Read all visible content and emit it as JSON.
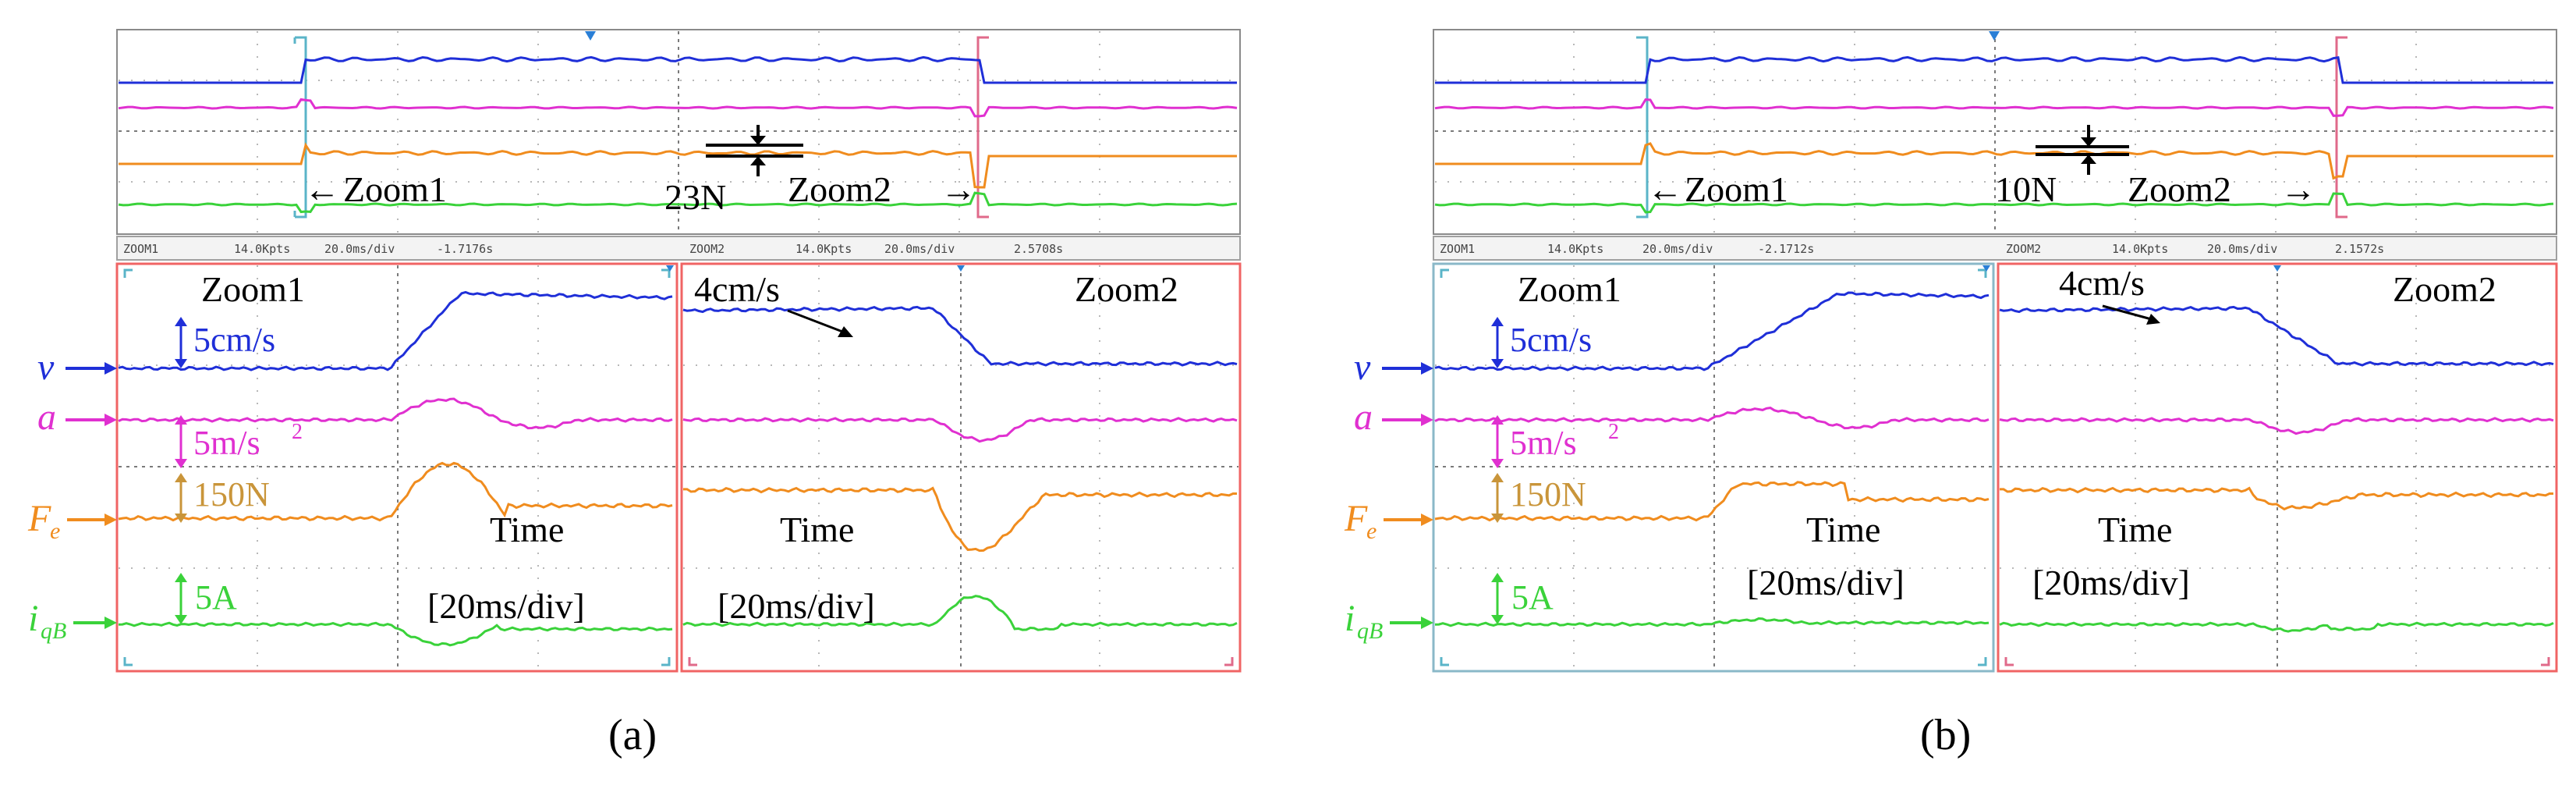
{
  "chart_data": [
    {
      "type": "line",
      "panel": "(a)",
      "channel_labels": [
        "v",
        "a",
        "F",
        "e",
        "i",
        "qB"
      ],
      "scales": {
        "v": "5cm/s",
        "a": "5m/s",
        "a_exp": "2",
        "F": "150N",
        "i": "5A"
      },
      "overview": {
        "zoom1_text": "Zoom1",
        "zoom2_text": "Zoom2",
        "ripple_text": "23N",
        "arrow_left": "←",
        "arrow_right": "→"
      },
      "zoom_headers": [
        {
          "name": "ZOOM1",
          "pts": "14.0Kpts",
          "div": "20.0ms/div",
          "t": "-1.7176s"
        },
        {
          "name": "ZOOM2",
          "pts": "14.0Kpts",
          "div": "20.0ms/div",
          "t": "2.5708s"
        }
      ],
      "zoom1": {
        "title": "Zoom1",
        "time_line1": "Time",
        "time_line2": "[20ms/div]"
      },
      "zoom2": {
        "title": "Zoom2",
        "speed_text": "4cm/s",
        "time_line1": "Time",
        "time_line2": "[20ms/div]"
      }
    },
    {
      "type": "line",
      "panel": "(b)",
      "channel_labels": [
        "v",
        "a",
        "F",
        "e",
        "i",
        "qB"
      ],
      "scales": {
        "v": "5cm/s",
        "a": "5m/s",
        "a_exp": "2",
        "F": "150N",
        "i": "5A"
      },
      "overview": {
        "zoom1_text": "Zoom1",
        "zoom2_text": "Zoom2",
        "ripple_text": "10N",
        "arrow_left": "←",
        "arrow_right": "→"
      },
      "zoom_headers": [
        {
          "name": "ZOOM1",
          "pts": "14.0Kpts",
          "div": "20.0ms/div",
          "t": "-2.1712s"
        },
        {
          "name": "ZOOM2",
          "pts": "14.0Kpts",
          "div": "20.0ms/div",
          "t": "2.1572s"
        }
      ],
      "zoom1": {
        "title": "Zoom1",
        "time_line1": "Time",
        "time_line2": "[20ms/div]"
      },
      "zoom2": {
        "title": "Zoom2",
        "speed_text": "4cm/s",
        "time_line1": "Time",
        "time_line2": "[20ms/div]"
      }
    }
  ],
  "colors": {
    "v": "#1f2fd8",
    "a": "#e030d0",
    "F": "#f08c1e",
    "i": "#3ad23a",
    "grid": "#9a9a9a",
    "zoom_box": "#f06464",
    "bracket_cyan": "#5ab4c8",
    "trigger": "#2a7fd6"
  }
}
